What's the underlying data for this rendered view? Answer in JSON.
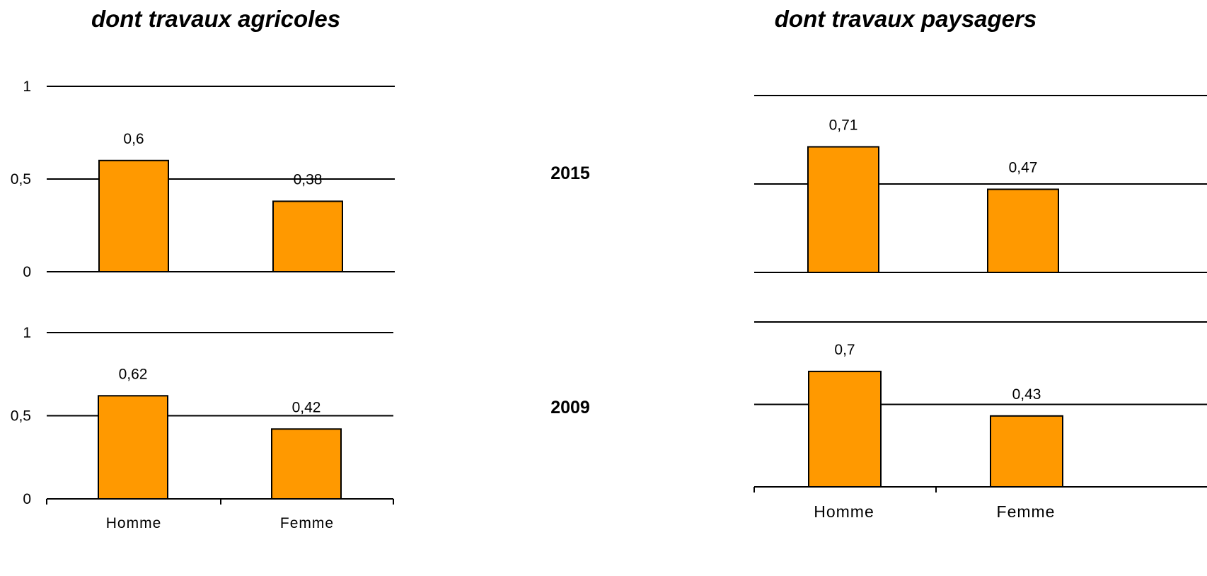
{
  "chart_data": [
    {
      "type": "bar",
      "title": "dont travaux agricoles",
      "row_label": "2015",
      "categories": [
        "Homme",
        "Femme"
      ],
      "values": [
        0.6,
        0.38
      ],
      "value_labels": [
        "0,6",
        "0,38"
      ],
      "ylim": [
        0,
        1
      ],
      "yticks": [
        0,
        0.5,
        1
      ],
      "ytick_labels": [
        "0",
        "0,5",
        "1"
      ],
      "bar_color": "#ff9900",
      "grid": true
    },
    {
      "type": "bar",
      "title": "dont travaux agricoles",
      "row_label": "2009",
      "categories": [
        "Homme",
        "Femme"
      ],
      "values": [
        0.62,
        0.42
      ],
      "value_labels": [
        "0,62",
        "0,42"
      ],
      "ylim": [
        0,
        1
      ],
      "yticks": [
        0,
        0.5,
        1
      ],
      "ytick_labels": [
        "0",
        "0,5",
        "1"
      ],
      "bar_color": "#ff9900",
      "grid": true
    },
    {
      "type": "bar",
      "title": "dont travaux paysagers",
      "row_label": "2015",
      "categories": [
        "Homme",
        "Femme"
      ],
      "values": [
        0.71,
        0.47
      ],
      "value_labels": [
        "0,71",
        "0,47"
      ],
      "ylim": [
        0,
        1
      ],
      "yticks": [
        0,
        0.5,
        1
      ],
      "ytick_labels": [],
      "bar_color": "#ff9900",
      "grid": true
    },
    {
      "type": "bar",
      "title": "dont travaux paysagers",
      "row_label": "2009",
      "categories": [
        "Homme",
        "Femme"
      ],
      "values": [
        0.7,
        0.43
      ],
      "value_labels": [
        "0,7",
        "0,43"
      ],
      "ylim": [
        0,
        1
      ],
      "yticks": [
        0,
        0.5,
        1
      ],
      "ytick_labels": [],
      "bar_color": "#ff9900",
      "grid": true
    }
  ],
  "titles": {
    "left": "dont travaux agricoles",
    "right": "dont travaux paysagers"
  },
  "years": {
    "top": "2015",
    "bottom": "2009"
  },
  "categories": [
    "Homme",
    "Femme"
  ]
}
